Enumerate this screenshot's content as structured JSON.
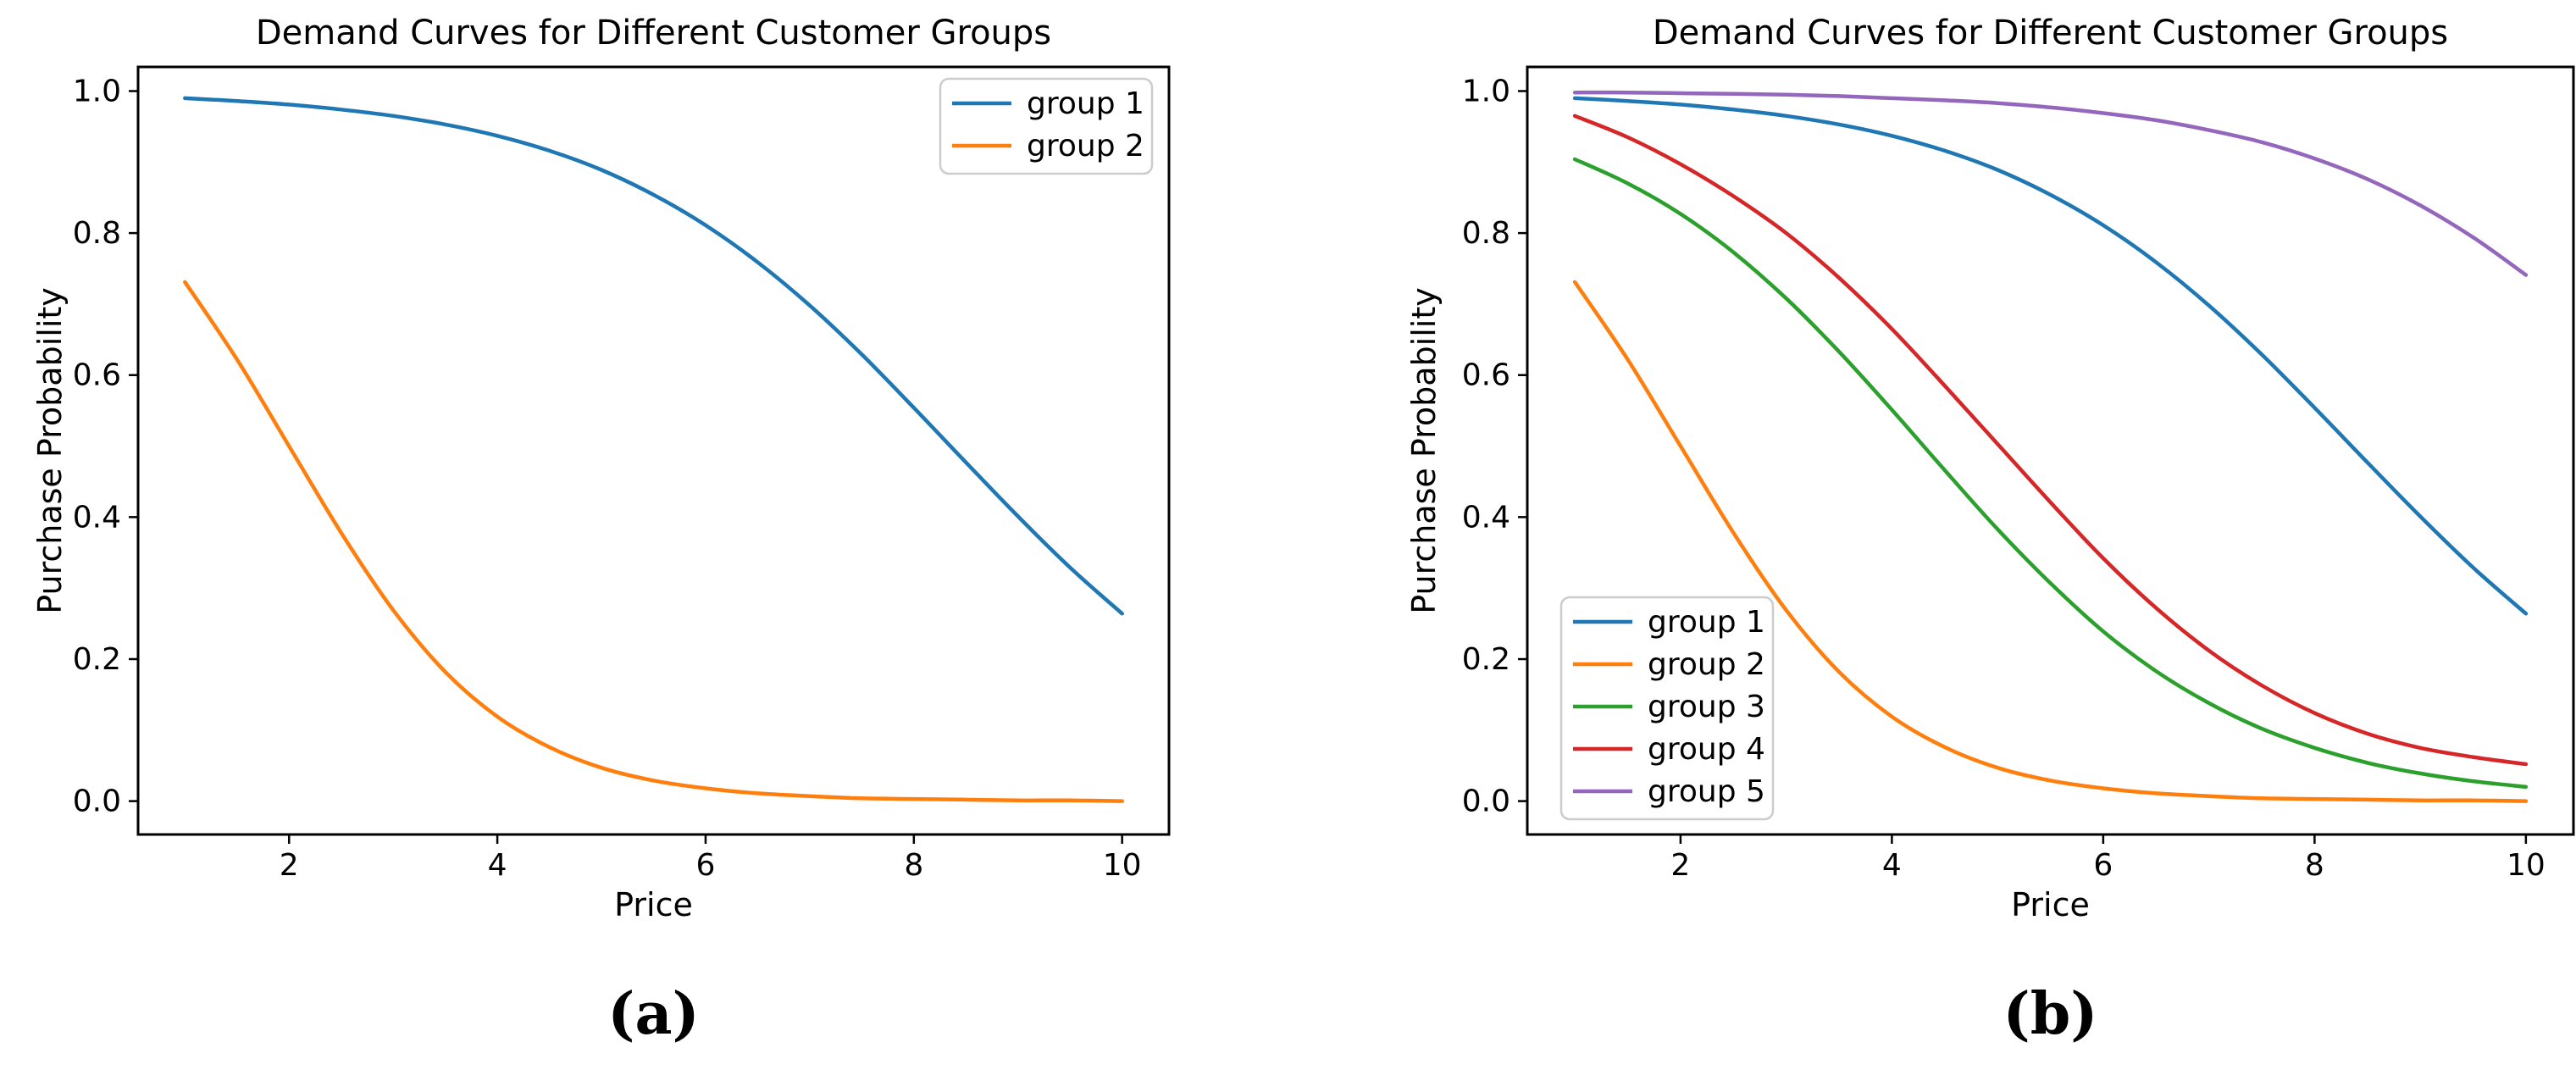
{
  "figure": {
    "background": "#ffffff",
    "axis_color": "#000000",
    "legend_border_color": "#cccccc"
  },
  "chart_data": [
    {
      "id": "panel-a",
      "type": "line",
      "title": "Demand Curves for Different Customer Groups",
      "xlabel": "Price",
      "ylabel": "Purchase Probability",
      "caption": "(a)",
      "xlim": [
        0.55,
        10.45
      ],
      "ylim": [
        -0.047,
        1.034
      ],
      "xticks": [
        2,
        4,
        6,
        8,
        10
      ],
      "xtick_labels": [
        "2",
        "4",
        "6",
        "8",
        "10"
      ],
      "yticks": [
        0.0,
        0.2,
        0.4,
        0.6,
        0.8,
        1.0
      ],
      "ytick_labels": [
        "0.0",
        "0.2",
        "0.4",
        "0.6",
        "0.8",
        "1.0"
      ],
      "grid": false,
      "legend_position": "upper right",
      "x": [
        1,
        1.5,
        2,
        2.5,
        3,
        3.5,
        4,
        4.5,
        5,
        5.5,
        6,
        6.5,
        7,
        7.5,
        8,
        8.5,
        9,
        9.5,
        10
      ],
      "series": [
        {
          "name": "group 1",
          "color": "#1f77b4",
          "values": [
            0.99,
            0.986,
            0.981,
            0.974,
            0.965,
            0.953,
            0.937,
            0.916,
            0.889,
            0.854,
            0.811,
            0.759,
            0.698,
            0.629,
            0.554,
            0.477,
            0.401,
            0.329,
            0.264
          ]
        },
        {
          "name": "group 2",
          "color": "#ff7f0e",
          "values": [
            0.731,
            0.622,
            0.5,
            0.378,
            0.269,
            0.182,
            0.119,
            0.076,
            0.047,
            0.029,
            0.018,
            0.011,
            0.007,
            0.004,
            0.003,
            0.002,
            0.001,
            0.001,
            0.0
          ]
        }
      ]
    },
    {
      "id": "panel-b",
      "type": "line",
      "title": "Demand Curves for Different Customer Groups",
      "xlabel": "Price",
      "ylabel": "Purchase Probability",
      "caption": "(b)",
      "xlim": [
        0.55,
        10.45
      ],
      "ylim": [
        -0.047,
        1.034
      ],
      "xticks": [
        2,
        4,
        6,
        8,
        10
      ],
      "xtick_labels": [
        "2",
        "4",
        "6",
        "8",
        "10"
      ],
      "yticks": [
        0.0,
        0.2,
        0.4,
        0.6,
        0.8,
        1.0
      ],
      "ytick_labels": [
        "0.0",
        "0.2",
        "0.4",
        "0.6",
        "0.8",
        "1.0"
      ],
      "grid": false,
      "legend_position": "lower left",
      "x": [
        1,
        1.5,
        2,
        2.5,
        3,
        3.5,
        4,
        4.5,
        5,
        5.5,
        6,
        6.5,
        7,
        7.5,
        8,
        8.5,
        9,
        9.5,
        10
      ],
      "series": [
        {
          "name": "group 1",
          "color": "#1f77b4",
          "values": [
            0.99,
            0.986,
            0.981,
            0.974,
            0.965,
            0.953,
            0.937,
            0.916,
            0.889,
            0.854,
            0.811,
            0.759,
            0.698,
            0.629,
            0.554,
            0.477,
            0.401,
            0.329,
            0.264
          ]
        },
        {
          "name": "group 2",
          "color": "#ff7f0e",
          "values": [
            0.731,
            0.622,
            0.5,
            0.378,
            0.269,
            0.182,
            0.119,
            0.076,
            0.047,
            0.029,
            0.018,
            0.011,
            0.007,
            0.004,
            0.003,
            0.002,
            0.001,
            0.001,
            0.0
          ]
        },
        {
          "name": "group 3",
          "color": "#2ca02c",
          "values": [
            0.904,
            0.87,
            0.827,
            0.773,
            0.708,
            0.633,
            0.551,
            0.466,
            0.383,
            0.307,
            0.239,
            0.183,
            0.138,
            0.102,
            0.075,
            0.054,
            0.039,
            0.028,
            0.02
          ]
        },
        {
          "name": "group 4",
          "color": "#d62728",
          "values": [
            0.965,
            0.935,
            0.897,
            0.852,
            0.8,
            0.737,
            0.665,
            0.585,
            0.503,
            0.421,
            0.342,
            0.272,
            0.212,
            0.163,
            0.124,
            0.095,
            0.075,
            0.062,
            0.052
          ]
        },
        {
          "name": "group 5",
          "color": "#9467bd",
          "values": [
            0.998,
            0.998,
            0.997,
            0.996,
            0.995,
            0.993,
            0.99,
            0.987,
            0.983,
            0.977,
            0.969,
            0.959,
            0.945,
            0.928,
            0.905,
            0.876,
            0.839,
            0.794,
            0.741
          ]
        }
      ]
    }
  ]
}
